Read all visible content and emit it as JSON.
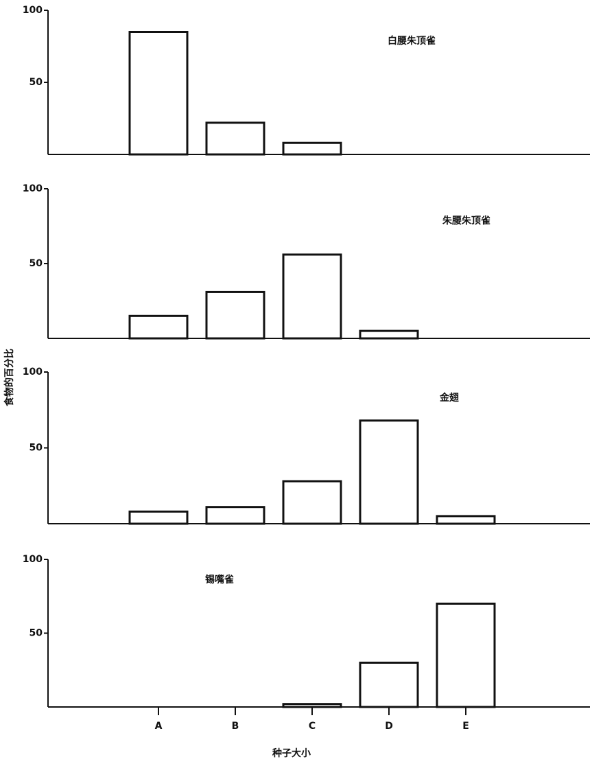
{
  "chart_data": [
    {
      "type": "bar",
      "title": "白腰朱顶雀",
      "y_label": "食物的百分比",
      "values": [
        85,
        22,
        8,
        0,
        0
      ],
      "ylim": [
        0,
        100
      ],
      "yticks": [
        50,
        100
      ],
      "color": "#ffffff"
    },
    {
      "type": "bar",
      "title": "朱腰朱顶雀",
      "values": [
        15,
        31,
        56,
        5,
        0
      ],
      "ylim": [
        0,
        100
      ],
      "yticks": [
        50,
        100
      ],
      "color": "#ffffff"
    },
    {
      "type": "bar",
      "title": "金翅",
      "values": [
        8,
        11,
        28,
        68,
        5
      ],
      "ylim": [
        0,
        100
      ],
      "yticks": [
        50,
        100
      ],
      "color": "#ffffff"
    },
    {
      "type": "bar",
      "title": "锡嘴雀",
      "x_label": "种子大小",
      "categories": [
        "A",
        "B",
        "C",
        "D",
        "E"
      ],
      "values": [
        0,
        0,
        2,
        30,
        70
      ],
      "ylim": [
        0,
        100
      ],
      "yticks": [
        50,
        100
      ],
      "color": "#ffffff"
    }
  ]
}
